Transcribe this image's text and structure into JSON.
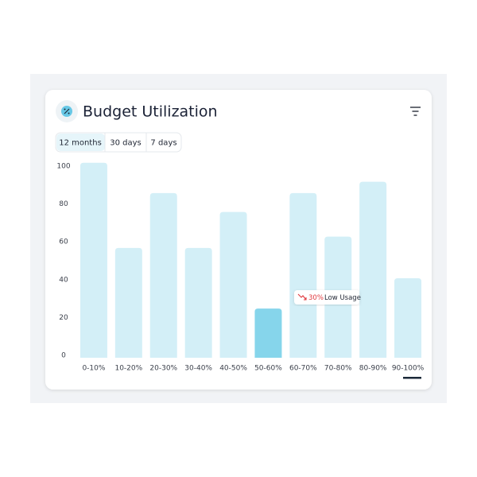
{
  "ui": {
    "tabs": [
      "12 months",
      "30 days",
      "7 days"
    ],
    "active_tab": 0
  },
  "chart_data": {
    "type": "bar",
    "title": "Budget Utilization",
    "categories": [
      "0-10%",
      "10-20%",
      "20-30%",
      "30-40%",
      "40-50%",
      "50-60%",
      "60-70%",
      "70-80%",
      "80-90%",
      "90-100%"
    ],
    "values": [
      103,
      58,
      87,
      58,
      77,
      26,
      87,
      64,
      93,
      42
    ],
    "color": "#d3eff7",
    "highlight_color": "#86d5eb",
    "highlight_index": 5,
    "ylim": [
      0,
      105
    ],
    "yticks": [
      0,
      20,
      40,
      60,
      80,
      100
    ],
    "grid": false,
    "annotation": {
      "change": "30%",
      "label": "Low Usage"
    }
  }
}
